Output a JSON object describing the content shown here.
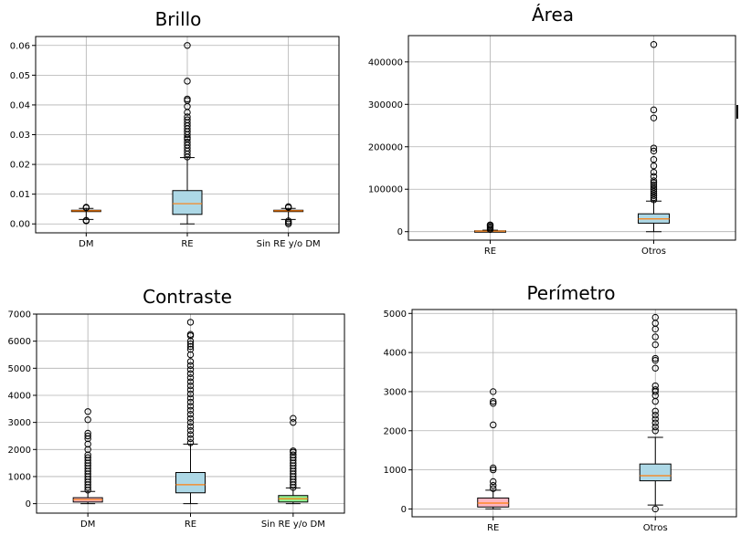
{
  "figure": {
    "cut_off_text": "I"
  },
  "chart_data": [
    {
      "type": "box",
      "title": "Brillo",
      "xlabel": "",
      "ylabel": "",
      "ylim": [
        -0.003,
        0.063
      ],
      "yticks": [
        0.0,
        0.01,
        0.02,
        0.03,
        0.04,
        0.05,
        0.06
      ],
      "ytick_labels": [
        "0.00",
        "0.01",
        "0.02",
        "0.03",
        "0.04",
        "0.05",
        "0.06"
      ],
      "grid": true,
      "categories": [
        "DM",
        "RE",
        "Sin RE y/o DM"
      ],
      "box_colors": [
        "#add8e6",
        "#add8e6",
        "#add8e6"
      ],
      "median_color": "#ff7f0e",
      "boxes": [
        {
          "whislo": 0.0015,
          "q1": 0.0042,
          "med": 0.0044,
          "q3": 0.0046,
          "whishi": 0.0052,
          "fliers": [
            0.001,
            0.0012,
            0.0054,
            0.0056
          ]
        },
        {
          "whislo": 0.0,
          "q1": 0.0032,
          "med": 0.0068,
          "q3": 0.0112,
          "whishi": 0.0223,
          "fliers": [
            0.0225,
            0.0235,
            0.0245,
            0.0255,
            0.0265,
            0.0275,
            0.0285,
            0.029,
            0.03,
            0.031,
            0.032,
            0.033,
            0.034,
            0.035,
            0.036,
            0.0375,
            0.0395,
            0.0415,
            0.042,
            0.048,
            0.06
          ]
        },
        {
          "whislo": 0.0015,
          "q1": 0.0042,
          "med": 0.0044,
          "q3": 0.0046,
          "whishi": 0.0052,
          "fliers": [
            0.0,
            0.0005,
            0.001,
            0.0055,
            0.0058
          ]
        }
      ]
    },
    {
      "type": "box",
      "title": "Área",
      "xlabel": "",
      "ylabel": "",
      "ylim": [
        -20000,
        462000
      ],
      "yticks": [
        0,
        100000,
        200000,
        300000,
        400000
      ],
      "ytick_labels": [
        "0",
        "100000",
        "200000",
        "300000",
        "400000"
      ],
      "grid": true,
      "categories": [
        "RE",
        "Otros"
      ],
      "box_colors": [
        "#add8e6",
        "#add8e6"
      ],
      "median_color": "#ff7f0e",
      "boxes": [
        {
          "whislo": 0,
          "q1": 600,
          "med": 1200,
          "q3": 2000,
          "whishi": 3500,
          "fliers": [
            5000,
            8000,
            11000,
            14000,
            16000
          ]
        },
        {
          "whislo": 0,
          "q1": 20000,
          "med": 30000,
          "q3": 42000,
          "whishi": 72000,
          "fliers": [
            75000,
            80000,
            85000,
            90000,
            95000,
            100000,
            105000,
            110000,
            115000,
            120000,
            130000,
            140000,
            155000,
            170000,
            190000,
            197000,
            268000,
            287000,
            441000
          ]
        }
      ]
    },
    {
      "type": "box",
      "title": "Contraste",
      "xlabel": "",
      "ylabel": "",
      "ylim": [
        -350,
        7000
      ],
      "yticks": [
        0,
        1000,
        2000,
        3000,
        4000,
        5000,
        6000,
        7000
      ],
      "ytick_labels": [
        "0",
        "1000",
        "2000",
        "3000",
        "4000",
        "5000",
        "6000",
        "7000"
      ],
      "grid": true,
      "categories": [
        "DM",
        "RE",
        "Sin RE y/o DM"
      ],
      "box_colors": [
        "#ffb6c1",
        "#add8e6",
        "#90ee90"
      ],
      "median_color": "#ff7f0e",
      "boxes": [
        {
          "whislo": 0,
          "q1": 60,
          "med": 150,
          "q3": 220,
          "whishi": 450,
          "fliers": [
            500,
            600,
            700,
            800,
            900,
            1000,
            1100,
            1200,
            1300,
            1400,
            1500,
            1600,
            1700,
            1800,
            2000,
            2200,
            2400,
            2500,
            2600,
            3100,
            3400
          ]
        },
        {
          "whislo": 0,
          "q1": 400,
          "med": 700,
          "q3": 1150,
          "whishi": 2200,
          "fliers": [
            2250,
            2400,
            2550,
            2700,
            2850,
            3000,
            3150,
            3300,
            3450,
            3600,
            3750,
            3900,
            4050,
            4200,
            4350,
            4500,
            4650,
            4800,
            4950,
            5100,
            5250,
            5500,
            5700,
            5800,
            5900,
            6000,
            6200,
            6250,
            6700
          ]
        },
        {
          "whislo": 0,
          "q1": 60,
          "med": 180,
          "q3": 300,
          "whishi": 580,
          "fliers": [
            600,
            700,
            800,
            900,
            1000,
            1100,
            1200,
            1300,
            1400,
            1500,
            1600,
            1700,
            1800,
            1900,
            1950,
            3000,
            3150
          ]
        }
      ]
    },
    {
      "type": "box",
      "title": "Perímetro",
      "xlabel": "",
      "ylabel": "",
      "ylim": [
        -200,
        5100
      ],
      "yticks": [
        0,
        1000,
        2000,
        3000,
        4000,
        5000
      ],
      "ytick_labels": [
        "0",
        "1000",
        "2000",
        "3000",
        "4000",
        "5000"
      ],
      "grid": true,
      "categories": [
        "RE",
        "Otros"
      ],
      "box_colors": [
        "#ffb6c1",
        "#add8e6"
      ],
      "median_color": "#ff7f0e",
      "boxes": [
        {
          "whislo": 0,
          "q1": 50,
          "med": 150,
          "q3": 280,
          "whishi": 480,
          "fliers": [
            520,
            600,
            700,
            1000,
            1050,
            2150,
            2700,
            2750,
            3000
          ]
        },
        {
          "whislo": 100,
          "q1": 720,
          "med": 850,
          "q3": 1150,
          "whishi": 1830,
          "fliers": [
            0,
            2000,
            2100,
            2200,
            2300,
            2400,
            2500,
            2750,
            2900,
            3000,
            3050,
            3150,
            3600,
            3800,
            3850,
            4200,
            4400,
            4600,
            4750,
            4900
          ]
        }
      ]
    }
  ]
}
